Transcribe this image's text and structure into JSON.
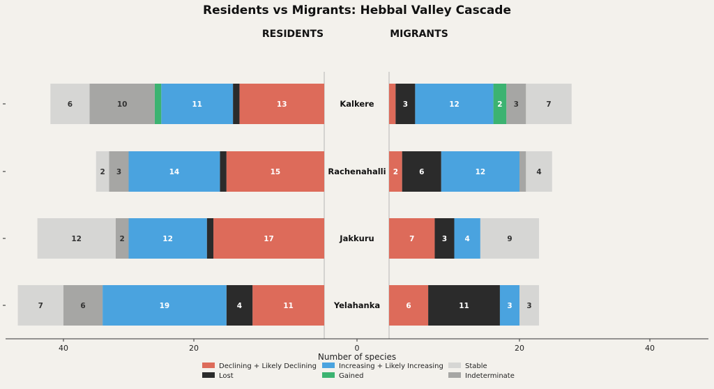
{
  "chart_data": {
    "type": "bar",
    "title": "Residents vs Migrants: Hebbal Valley Cascade",
    "left_panel_title": "RESIDENTS",
    "right_panel_title": "MIGRANTS",
    "xlabel": "Number of species",
    "categories": [
      "Kalkere",
      "Rachenahalli",
      "Jakkuru",
      "Yelahanka"
    ],
    "x_ticks_left": [
      40,
      20
    ],
    "x_ticks_right": [
      20,
      40
    ],
    "center_tick": 0,
    "xlim": [
      0,
      54
    ],
    "legend_placement": "bottom-center",
    "series": [
      {
        "name": "Declining + Likely Declining",
        "color": "#dd6b5a",
        "text_color": "#ffffff",
        "residents": [
          13,
          15,
          17,
          11
        ],
        "migrants": [
          1,
          2,
          7,
          6
        ]
      },
      {
        "name": "Lost",
        "color": "#2b2b2b",
        "text_color": "#ffffff",
        "residents": [
          1,
          1,
          1,
          4
        ],
        "migrants": [
          3,
          6,
          3,
          11
        ]
      },
      {
        "name": "Increasing + Likely Increasing",
        "color": "#4aa3df",
        "text_color": "#ffffff",
        "residents": [
          11,
          14,
          12,
          19
        ],
        "migrants": [
          12,
          12,
          4,
          3
        ]
      },
      {
        "name": "Gained",
        "color": "#3cb371",
        "text_color": "#ffffff",
        "residents": [
          1,
          0,
          0,
          0
        ],
        "migrants": [
          2,
          0,
          0,
          0
        ]
      },
      {
        "name": "Indeterminate",
        "color": "#a6a6a4",
        "text_color": "#333333",
        "residents": [
          10,
          3,
          2,
          6
        ],
        "migrants": [
          3,
          1,
          0,
          0
        ]
      },
      {
        "name": "Stable",
        "color": "#d6d6d4",
        "text_color": "#333333",
        "residents": [
          6,
          2,
          12,
          7
        ],
        "migrants": [
          7,
          4,
          9,
          3
        ]
      }
    ],
    "legend_order": [
      "Declining + Likely Declining",
      "Increasing + Likely Increasing",
      "Stable",
      "Lost",
      "Gained",
      "Indeterminate"
    ]
  }
}
